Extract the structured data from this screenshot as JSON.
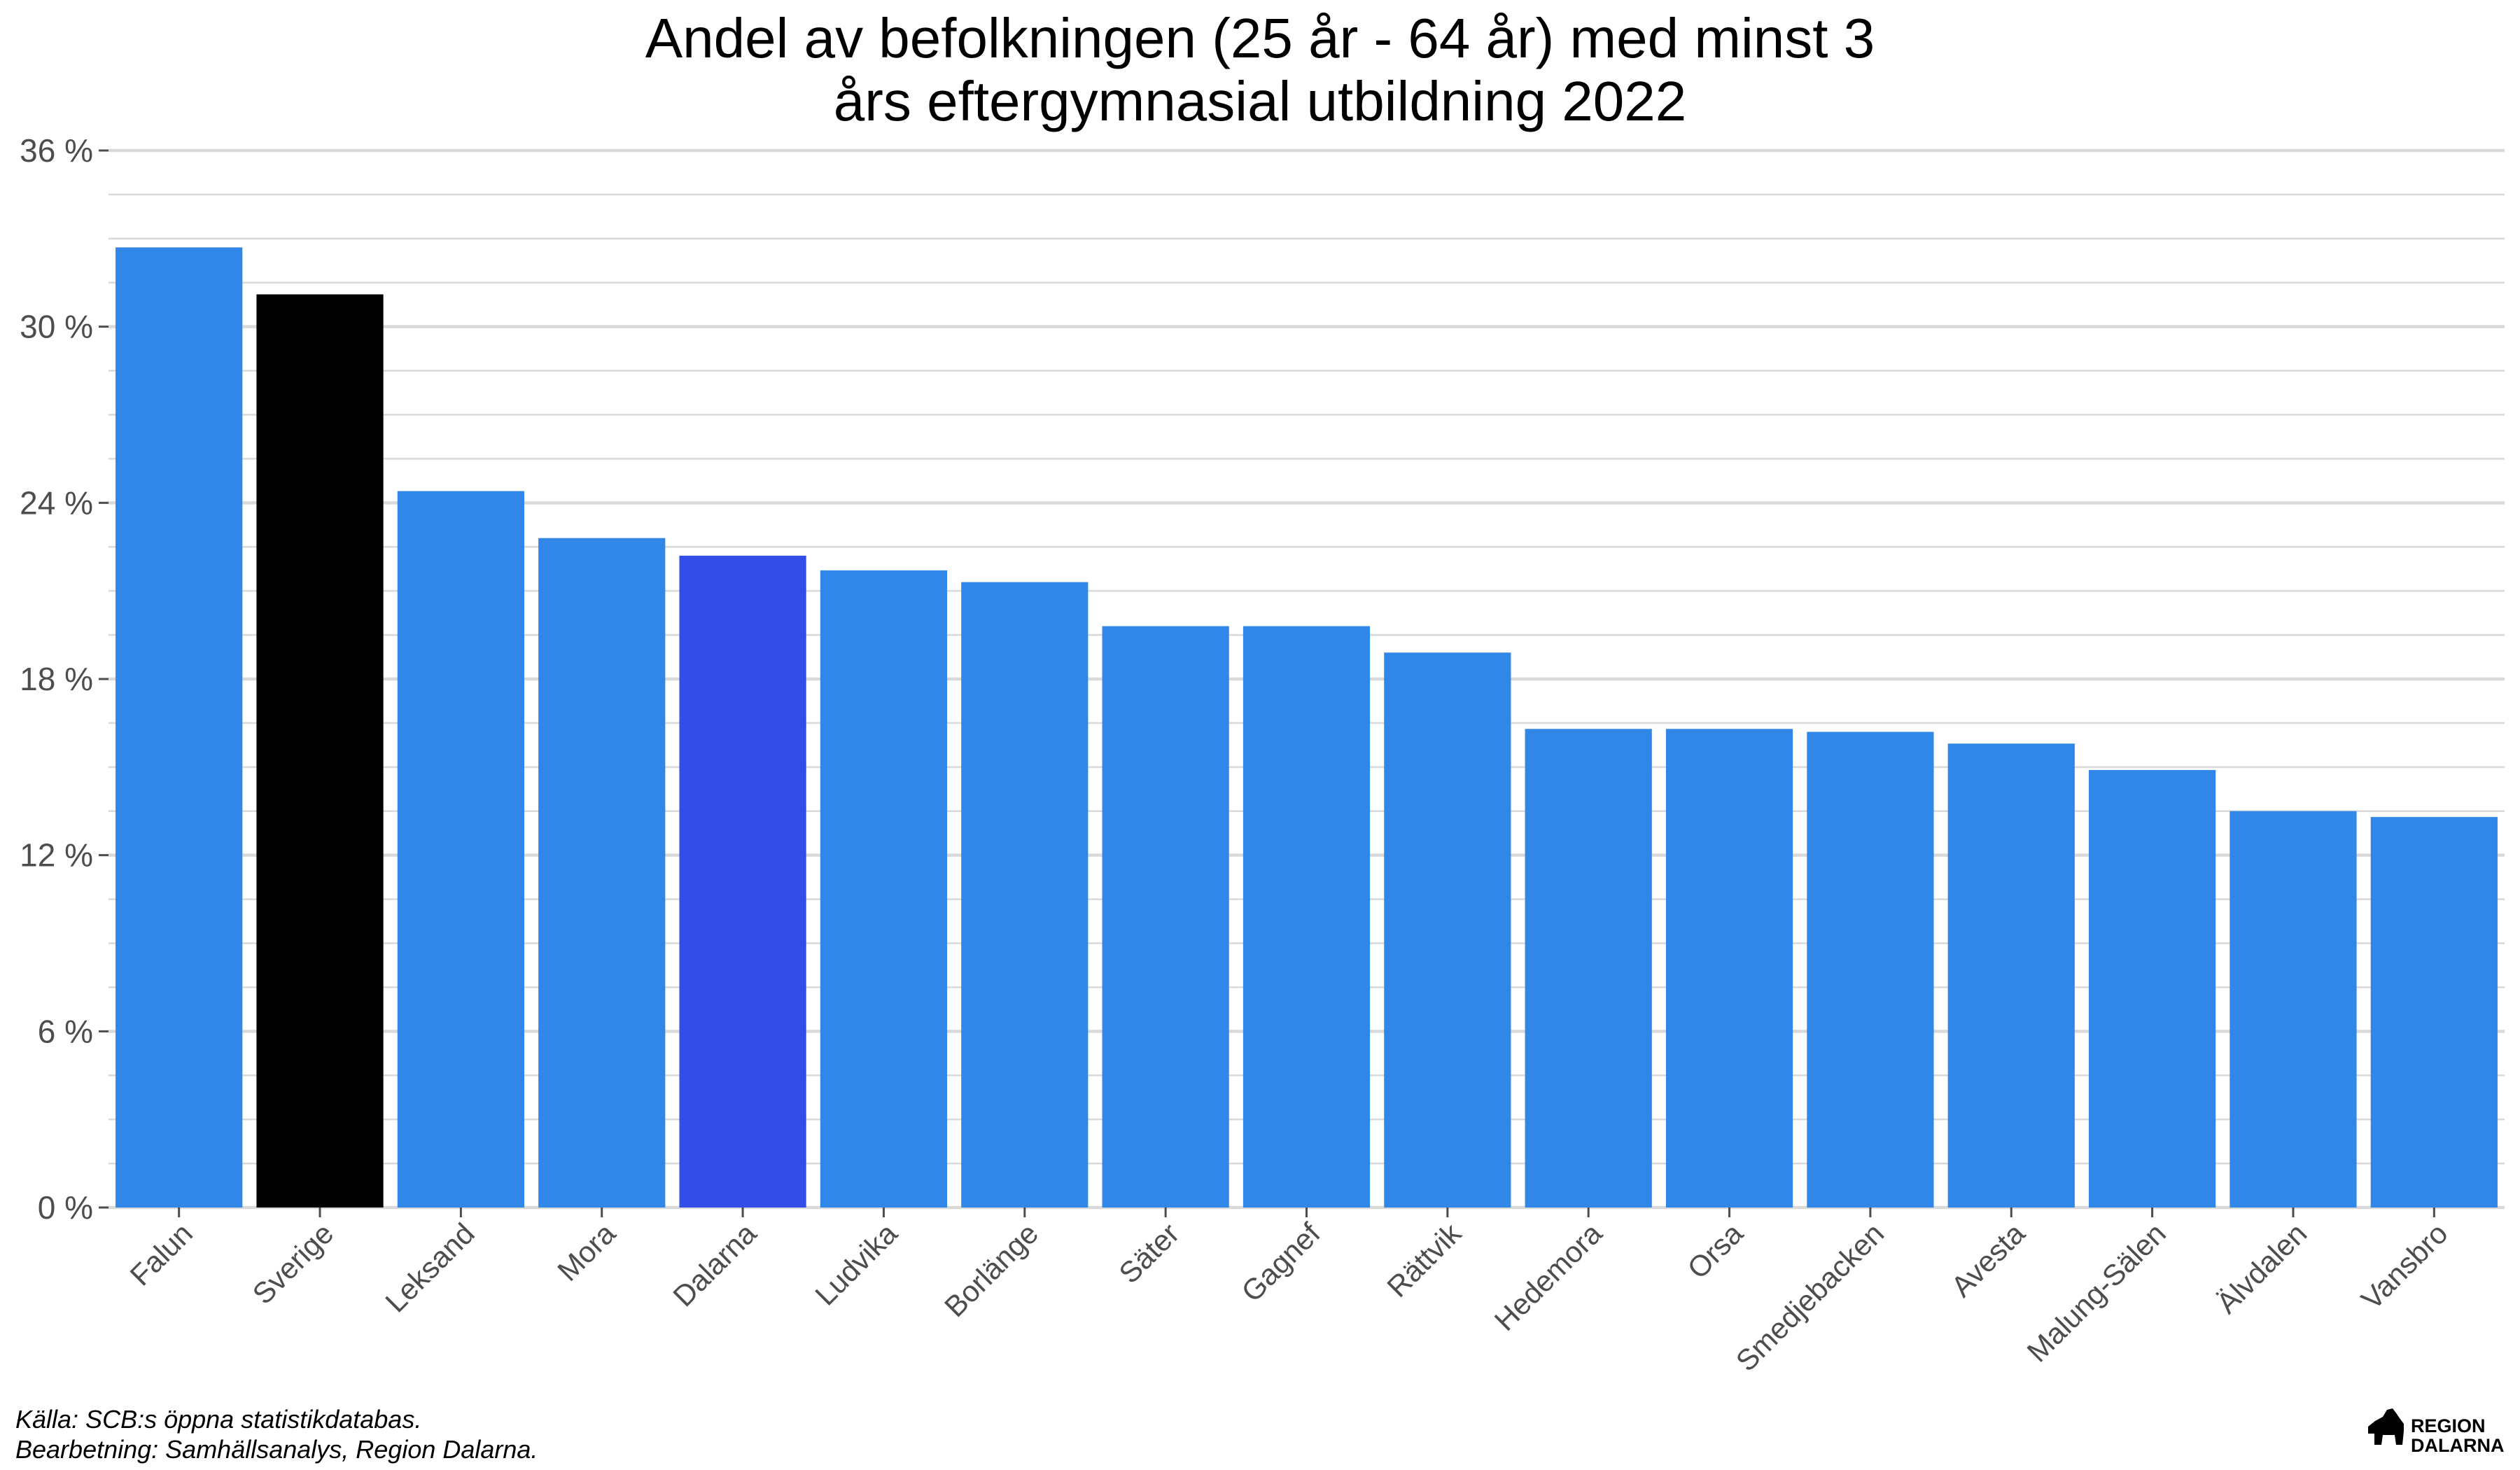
{
  "chart_data": {
    "type": "bar",
    "title_lines": [
      "Andel av befolkningen (25 år - 64 år) med minst 3",
      "års eftergymnasial utbildning 2022"
    ],
    "xlabel": "",
    "ylabel": "",
    "ylim": [
      0,
      36
    ],
    "ytick_values": [
      0,
      6,
      12,
      18,
      24,
      30,
      36
    ],
    "ytick_labels": [
      "0 %",
      "6 %",
      "12 %",
      "18 %",
      "24 %",
      "30 %",
      "36 %"
    ],
    "grid": true,
    "categories": [
      "Falun",
      "Sverige",
      "Leksand",
      "Mora",
      "Dalarna",
      "Ludvika",
      "Borlänge",
      "Säter",
      "Gagnef",
      "Rättvik",
      "Hedemora",
      "Orsa",
      "Smedjebacken",
      "Avesta",
      "Malung-Sälen",
      "Älvdalen",
      "Vansbro"
    ],
    "values": [
      32.7,
      31.1,
      24.4,
      22.8,
      22.2,
      21.7,
      21.3,
      19.8,
      19.8,
      18.9,
      16.3,
      16.3,
      16.2,
      15.8,
      14.9,
      13.5,
      13.3
    ],
    "colors": [
      "#3087E8",
      "#000000",
      "#3087E8",
      "#3087E8",
      "#334EE8",
      "#3087E8",
      "#3087E8",
      "#3087E8",
      "#3087E8",
      "#3087E8",
      "#3087E8",
      "#3087E8",
      "#3087E8",
      "#3087E8",
      "#3087E8",
      "#3087E8",
      "#3087E8"
    ],
    "caption_lines": [
      "Källa: SCB:s öppna statistikdatabas.",
      "Bearbetning: Samhällsanalys, Region Dalarna."
    ]
  },
  "logo": {
    "icon": "dala-horse-icon",
    "lines": [
      "REGION",
      "DALARNA"
    ]
  },
  "colors": {
    "default_bar": "#3087E8",
    "sverige_bar": "#000000",
    "dalarna_bar": "#334EE8",
    "gridline": "#d9d9d9",
    "tick_text": "#4d4d4d"
  }
}
